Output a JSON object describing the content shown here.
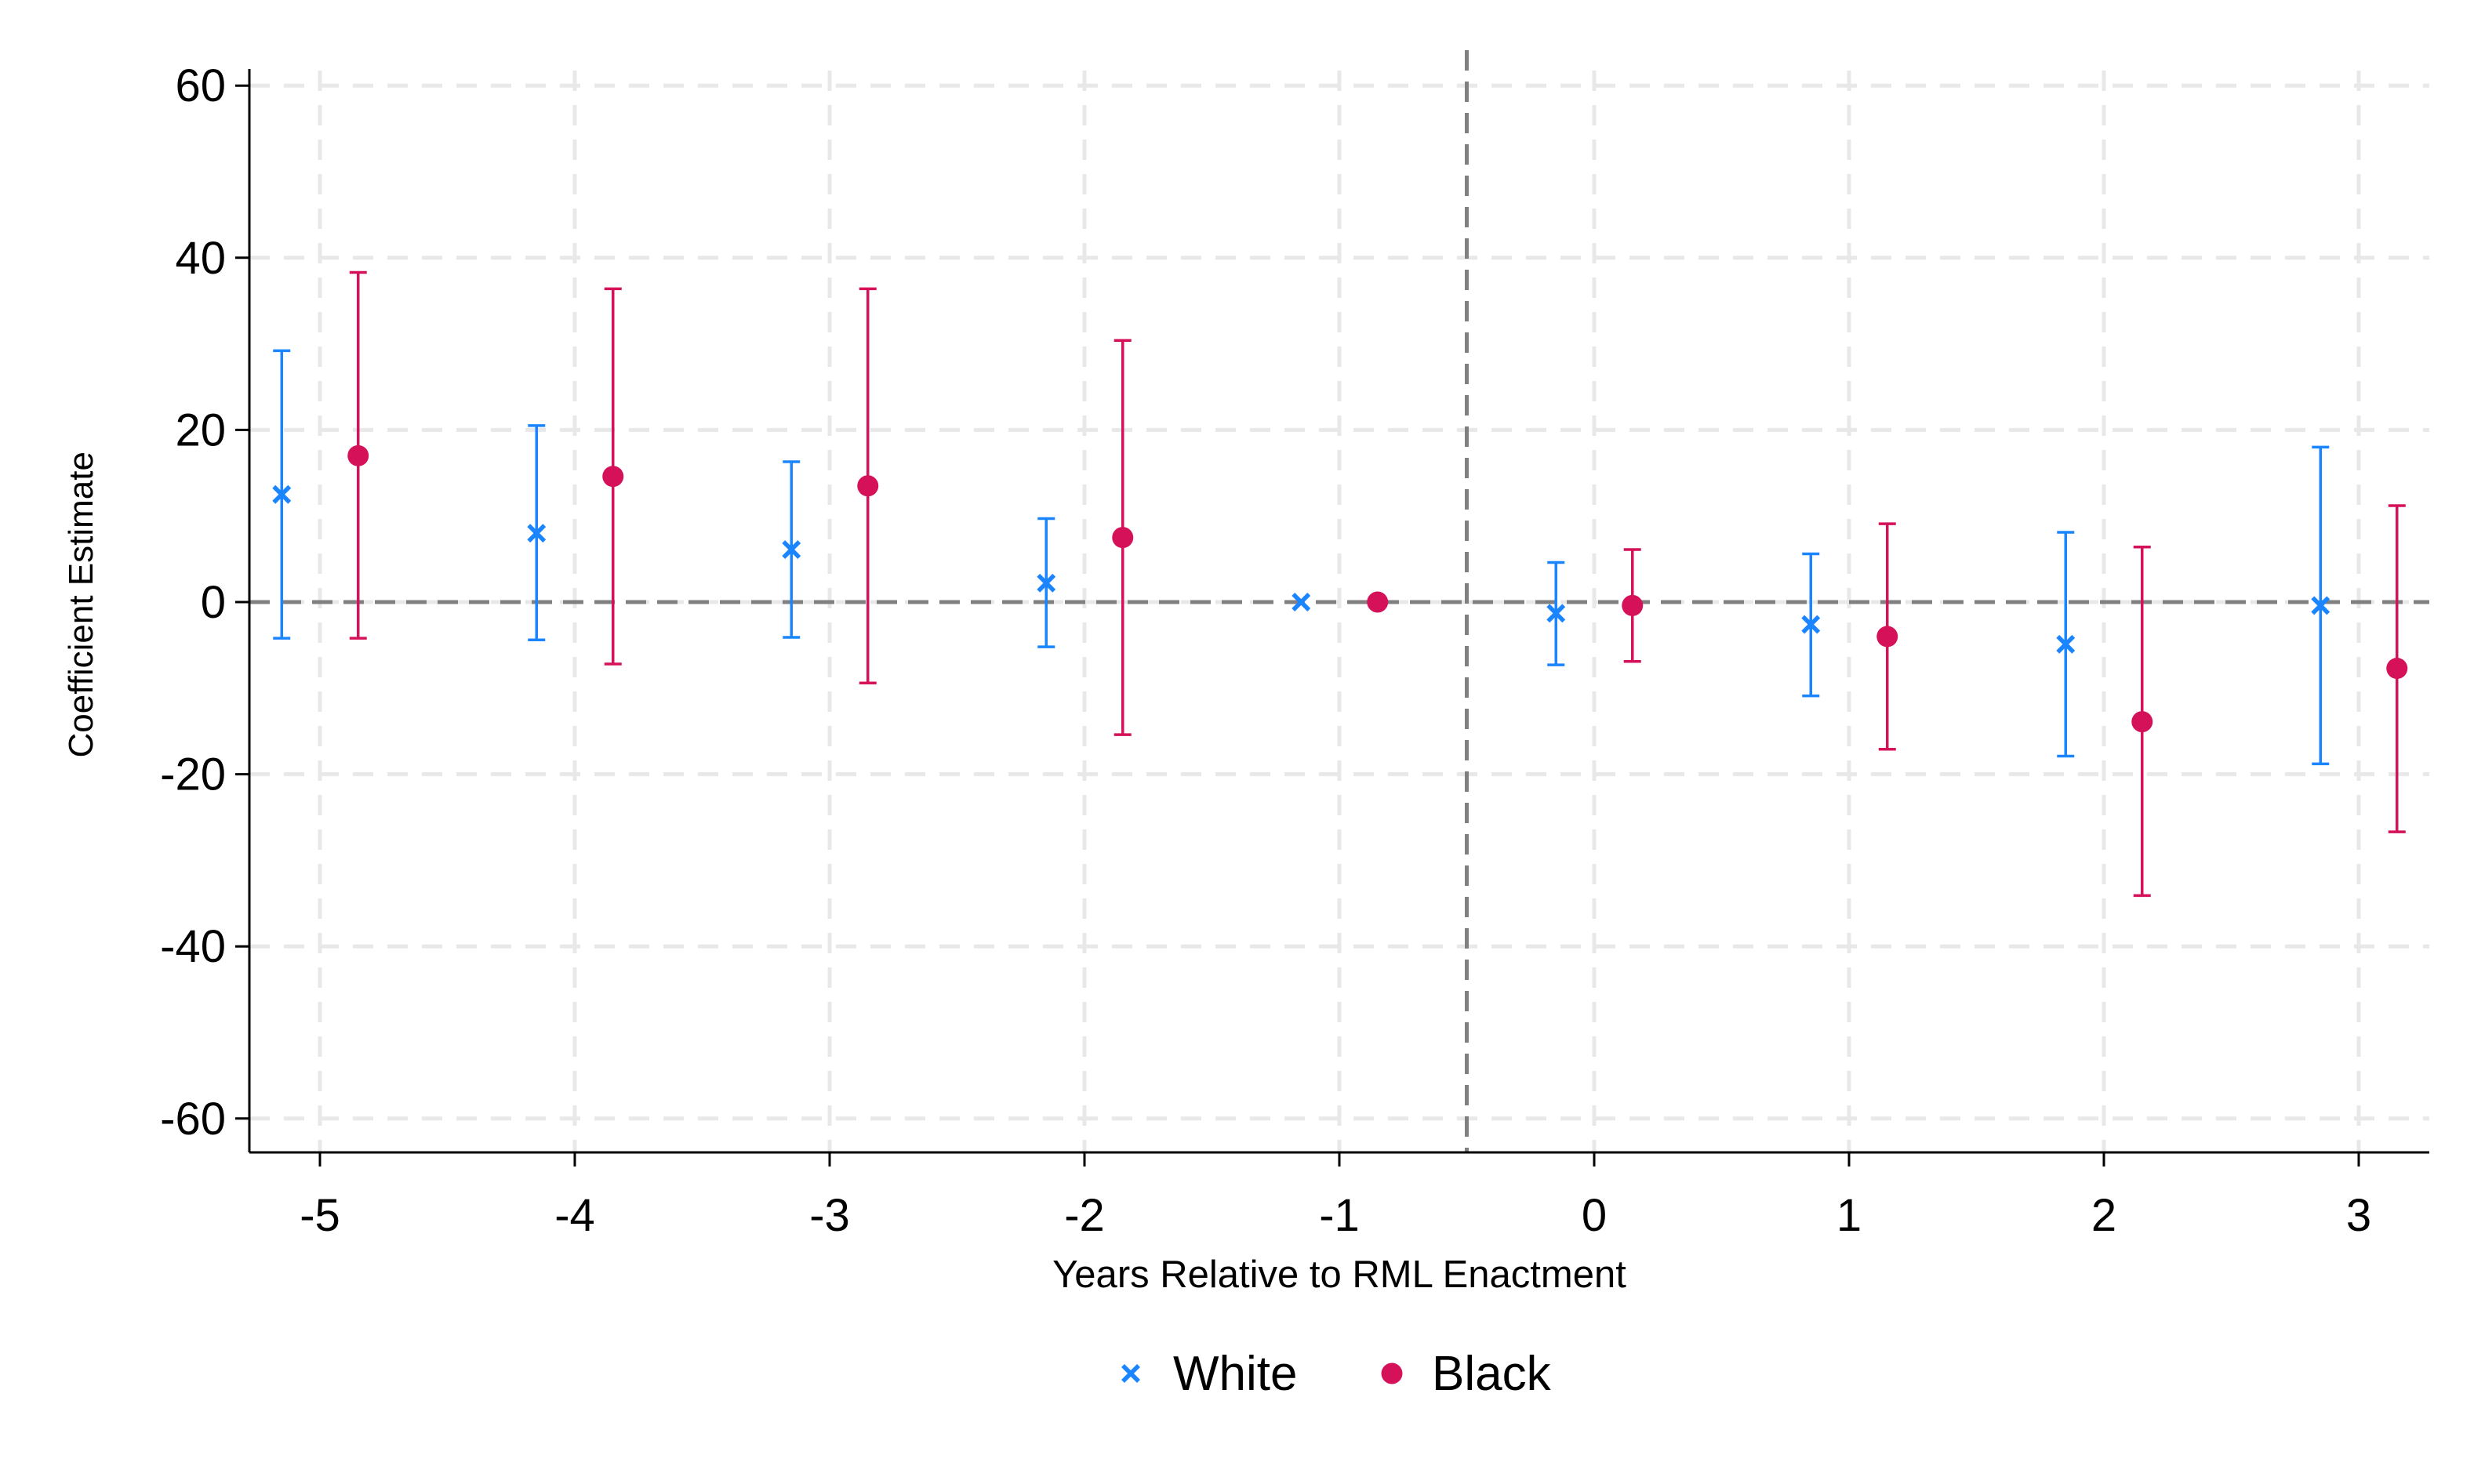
{
  "chart_data": {
    "type": "scatter",
    "xlabel": "Years Relative to RML Enactment",
    "ylabel": "Coefficient Estimate",
    "x_ticks": [
      -5,
      -4,
      -3,
      -2,
      -1,
      0,
      1,
      2,
      3
    ],
    "y_ticks": [
      -60,
      -40,
      -20,
      0,
      20,
      40,
      60
    ],
    "xlim": [
      -5.28,
      3.27
    ],
    "ylim": [
      -63.5,
      63.5
    ],
    "grid": true,
    "reference_lines": {
      "horizontal_y": 0,
      "vertical_x": -0.5
    },
    "legend_position": "bottom",
    "series": [
      {
        "name": "White",
        "marker": "x",
        "color": "#1a85ff",
        "offset": -0.15,
        "points": [
          {
            "x": -5,
            "estimate": 12.5,
            "ci_low": -4.2,
            "ci_high": 29.2
          },
          {
            "x": -4,
            "estimate": 8.0,
            "ci_low": -4.4,
            "ci_high": 20.5
          },
          {
            "x": -3,
            "estimate": 6.1,
            "ci_low": -4.1,
            "ci_high": 16.3
          },
          {
            "x": -2,
            "estimate": 2.2,
            "ci_low": -5.2,
            "ci_high": 9.7
          },
          {
            "x": -1,
            "estimate": 0.0,
            "ci_low": 0.0,
            "ci_high": 0.0
          },
          {
            "x": 0,
            "estimate": -1.3,
            "ci_low": -7.3,
            "ci_high": 4.6
          },
          {
            "x": 1,
            "estimate": -2.6,
            "ci_low": -10.9,
            "ci_high": 5.6
          },
          {
            "x": 2,
            "estimate": -4.9,
            "ci_low": -17.9,
            "ci_high": 8.1
          },
          {
            "x": 3,
            "estimate": -0.4,
            "ci_low": -18.8,
            "ci_high": 18.0
          }
        ]
      },
      {
        "name": "Black",
        "marker": "circle",
        "color": "#d41159",
        "offset": 0.15,
        "points": [
          {
            "x": -5,
            "estimate": 17.0,
            "ci_low": -4.2,
            "ci_high": 38.3
          },
          {
            "x": -4,
            "estimate": 14.6,
            "ci_low": -7.2,
            "ci_high": 36.4
          },
          {
            "x": -3,
            "estimate": 13.5,
            "ci_low": -9.4,
            "ci_high": 36.4
          },
          {
            "x": -2,
            "estimate": 7.5,
            "ci_low": -15.4,
            "ci_high": 30.4
          },
          {
            "x": -1,
            "estimate": 0.0,
            "ci_low": 0.0,
            "ci_high": 0.0
          },
          {
            "x": 0,
            "estimate": -0.4,
            "ci_low": -6.9,
            "ci_high": 6.1
          },
          {
            "x": 1,
            "estimate": -4.0,
            "ci_low": -17.1,
            "ci_high": 9.1
          },
          {
            "x": 2,
            "estimate": -13.9,
            "ci_low": -34.1,
            "ci_high": 6.4
          },
          {
            "x": 3,
            "estimate": -7.7,
            "ci_low": -26.7,
            "ci_high": 11.2
          }
        ]
      }
    ]
  }
}
